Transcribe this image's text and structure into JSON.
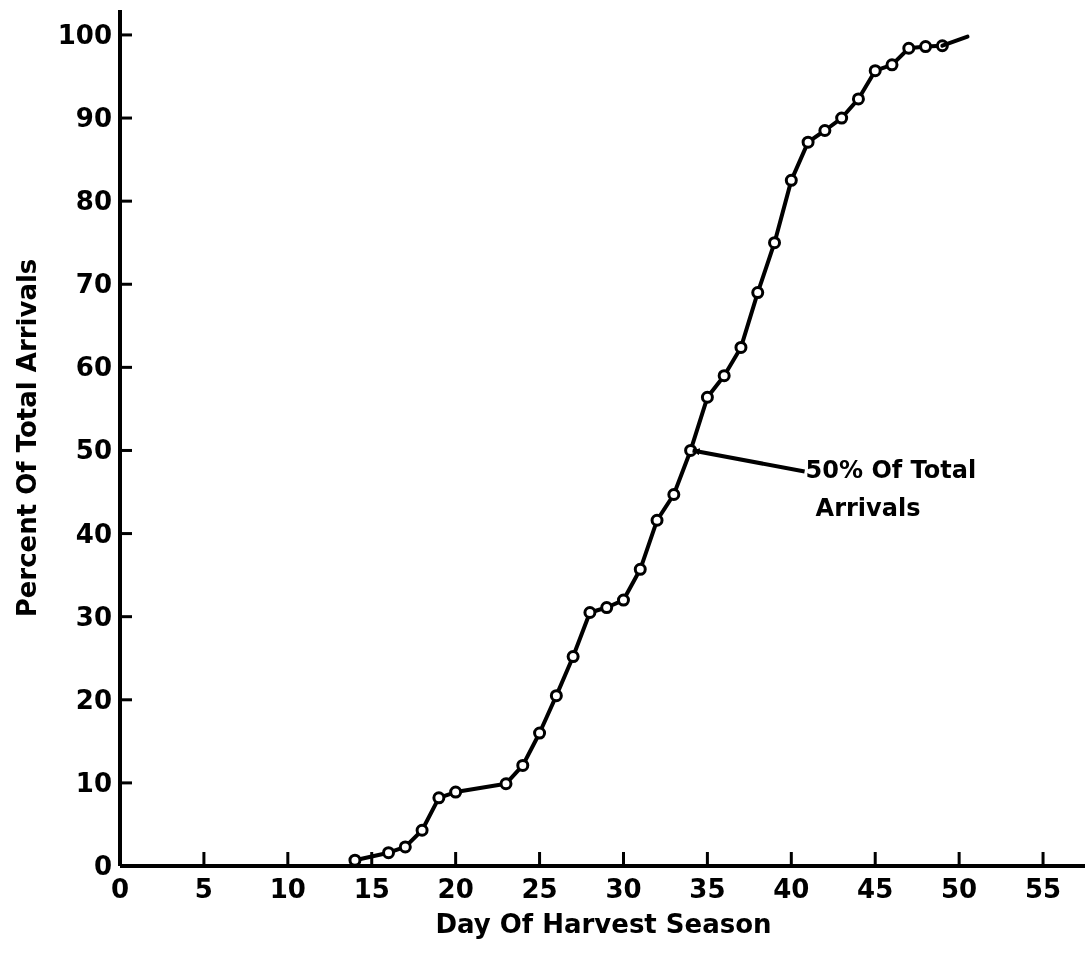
{
  "chart_data": {
    "type": "line",
    "xlabel": "Day Of Harvest Season",
    "ylabel": "Percent Of Total Arrivals",
    "xlim": [
      0,
      57.5
    ],
    "xticks": [
      0,
      5,
      10,
      15,
      20,
      25,
      30,
      35,
      40,
      45,
      50,
      55
    ],
    "ylim": [
      0,
      103
    ],
    "yticks": [
      0,
      10,
      20,
      30,
      40,
      50,
      60,
      70,
      80,
      90,
      100
    ],
    "grid": false,
    "marker": "circle",
    "line_style": "solid",
    "series": [
      {
        "color": "#000000",
        "x": [
          14,
          16,
          17,
          18,
          19,
          20,
          23,
          24,
          25,
          26,
          27,
          28,
          29,
          30,
          31,
          32,
          33,
          34,
          35,
          36,
          37,
          38,
          39,
          40,
          41,
          42,
          43,
          44,
          45,
          46,
          47,
          48,
          49
        ],
        "values": [
          0.7,
          1.6,
          2.3,
          4.3,
          8.2,
          8.9,
          9.9,
          12.1,
          16,
          20.5,
          25.2,
          30.5,
          31.1,
          32,
          35.7,
          41.6,
          44.7,
          50,
          56.4,
          59,
          62.4,
          69,
          75,
          82.5,
          87.1,
          88.5,
          90,
          92.3,
          95.7,
          96.4,
          98.4,
          98.6,
          98.7
        ]
      },
      {
        "color": "#000000",
        "marker": "none",
        "x": [
          49,
          50.5
        ],
        "values": [
          98.7,
          99.8
        ]
      }
    ],
    "annotations": [
      {
        "text": "50% Of Total Arrivals",
        "x": 34,
        "y": 50
      }
    ]
  }
}
